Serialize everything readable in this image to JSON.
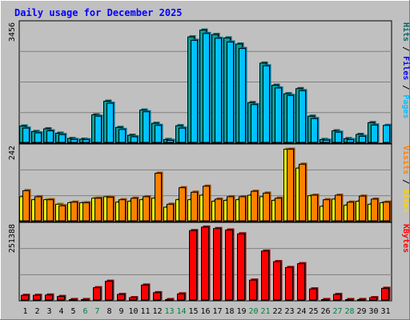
{
  "chart_data": {
    "type": "bar",
    "title": "Daily usage for December 2025",
    "categories": [
      "1",
      "2",
      "3",
      "4",
      "5",
      "6",
      "7",
      "8",
      "9",
      "10",
      "11",
      "12",
      "13",
      "14",
      "15",
      "16",
      "17",
      "18",
      "19",
      "20",
      "21",
      "22",
      "23",
      "24",
      "25",
      "26",
      "27",
      "28",
      "29",
      "30",
      "31"
    ],
    "weekend_days": [
      "6",
      "7",
      "13",
      "14",
      "20",
      "21",
      "27",
      "28"
    ],
    "panels": [
      {
        "id": "top",
        "ymax_label": "3456",
        "ylim": [
          0,
          3456
        ],
        "right_labels": [
          {
            "text": "Hits",
            "color": "#006666"
          },
          {
            "text": "Files",
            "color": "#0000ff"
          },
          {
            "text": "Pages",
            "color": "#00c0ff"
          }
        ],
        "series": [
          {
            "name": "Hits",
            "color": "#00a0a0",
            "values": [
              480,
              320,
              400,
              270,
              115,
              95,
              810,
              1210,
              440,
              210,
              950,
              560,
              85,
              490,
              3100,
              3300,
              3170,
              3070,
              2890,
              1170,
              2330,
              1680,
              1430,
              1580,
              770,
              85,
              340,
              110,
              235,
              580,
              0
            ]
          },
          {
            "name": "Pages",
            "color": "#00c0ff",
            "values": [
              420,
              280,
              340,
              230,
              85,
              80,
              770,
              1150,
              380,
              165,
              900,
              500,
              60,
              420,
              3000,
              3200,
              3060,
              2950,
              2760,
              1110,
              2250,
              1600,
              1380,
              1520,
              700,
              65,
              300,
              80,
              180,
              510,
              500
            ]
          }
        ]
      },
      {
        "id": "middle",
        "ymax_label": "242",
        "ylim": [
          0,
          242
        ],
        "right_labels": [
          {
            "text": "Visits",
            "color": "#ff8000"
          },
          {
            "text": "Sites",
            "color": "#ffd000"
          }
        ],
        "series": [
          {
            "name": "Sites",
            "color": "#ffff00",
            "values": [
              80,
              70,
              70,
              55,
              60,
              60,
              75,
              80,
              62,
              65,
              70,
              75,
              45,
              70,
              70,
              85,
              65,
              68,
              70,
              85,
              80,
              68,
              238,
              175,
              83,
              48,
              72,
              52,
              65,
              55,
              60
            ]
          },
          {
            "name": "Visits",
            "color": "#ff8000",
            "values": [
              100,
              80,
              70,
              50,
              62,
              60,
              75,
              78,
              70,
              75,
              80,
              158,
              55,
              110,
              95,
              115,
              72,
              80,
              80,
              98,
              92,
              75,
              238,
              188,
              85,
              70,
              85,
              62,
              82,
              72,
              62
            ]
          }
        ]
      },
      {
        "id": "bottom",
        "ymax_label": "251388",
        "ylim": [
          0,
          251388
        ],
        "right_labels": [
          {
            "text": "KBytes",
            "color": "#ff0000"
          }
        ],
        "series": [
          {
            "name": "KBytes",
            "color": "#ff0000",
            "values": [
              16000,
              16000,
              17000,
              12000,
              1500,
              1500,
              42000,
              64000,
              19000,
              8000,
              51000,
              25000,
              1500,
              21000,
              237000,
              249000,
              244000,
              239000,
              226000,
              68000,
              167000,
              131000,
              111000,
              124000,
              38000,
              1500,
              19000,
              1500,
              1500,
              8000,
              40000
            ]
          }
        ]
      }
    ]
  }
}
